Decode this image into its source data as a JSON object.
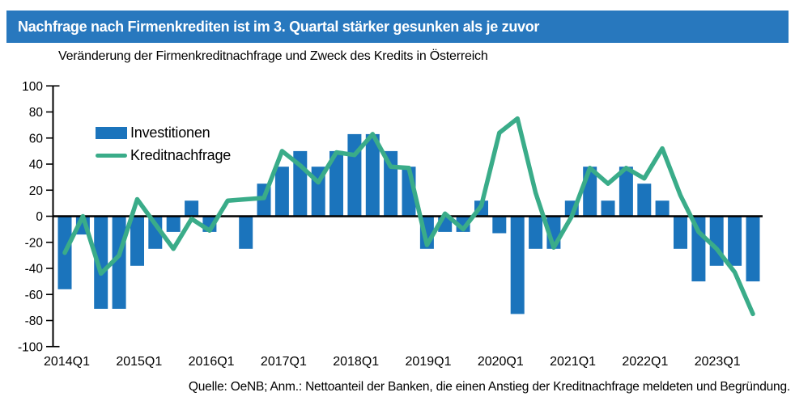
{
  "header": {
    "title": "Nachfrage nach Firmenkrediten ist im 3. Quartal stärker gesunken als je zuvor",
    "subtitle": "Veränderung der Firmenkreditnachfrage und Zweck des Kredits in Österreich"
  },
  "legend": {
    "bars_label": "Investitionen",
    "line_label": "Kreditnachfrage"
  },
  "footer": {
    "source_note": "Quelle: OeNB; Anm.: Nettoanteil der Banken, die einen Anstieg der Kreditnachfrage meldeten und Begründung."
  },
  "colors": {
    "banner_bg": "#2878BE",
    "bar": "#1B74BC",
    "line": "#3AAC89",
    "axis": "#000000",
    "text": "#000000",
    "title_text": "#FFFFFF"
  },
  "chart_data": {
    "type": "bar+line",
    "title": "Veränderung der Firmenkreditnachfrage und Zweck des Kredits in Österreich",
    "xlabel": "",
    "ylabel": "",
    "ylim": [
      -100,
      100
    ],
    "y_ticks": [
      100,
      80,
      60,
      40,
      20,
      0,
      -20,
      -40,
      -60,
      -80,
      -100
    ],
    "grid": false,
    "legend_position": "upper-left-inside",
    "x_tick_labels": [
      "2014Q1",
      "2015Q1",
      "2016Q1",
      "2017Q1",
      "2018Q1",
      "2019Q1",
      "2020Q1",
      "2021Q1",
      "2022Q1",
      "2023Q1"
    ],
    "categories": [
      "2014Q1",
      "2014Q2",
      "2014Q3",
      "2014Q4",
      "2015Q1",
      "2015Q2",
      "2015Q3",
      "2015Q4",
      "2016Q1",
      "2016Q2",
      "2016Q3",
      "2016Q4",
      "2017Q1",
      "2017Q2",
      "2017Q3",
      "2017Q4",
      "2018Q1",
      "2018Q2",
      "2018Q3",
      "2018Q4",
      "2019Q1",
      "2019Q2",
      "2019Q3",
      "2019Q4",
      "2020Q1",
      "2020Q2",
      "2020Q3",
      "2020Q4",
      "2021Q1",
      "2021Q2",
      "2021Q3",
      "2021Q4",
      "2022Q1",
      "2022Q2",
      "2022Q3",
      "2022Q4",
      "2023Q1",
      "2023Q2",
      "2023Q3"
    ],
    "series": [
      {
        "name": "Investitionen",
        "type": "bar",
        "values": [
          -56,
          -14,
          -71,
          -71,
          -38,
          -25,
          -12,
          12,
          -12,
          0,
          -25,
          25,
          38,
          50,
          38,
          50,
          63,
          63,
          50,
          38,
          -25,
          -12,
          -12,
          12,
          -13,
          -75,
          -25,
          -25,
          12,
          38,
          12,
          38,
          25,
          12,
          -25,
          -50,
          -38,
          -38,
          -50
        ]
      },
      {
        "name": "Kreditnachfrage",
        "type": "line",
        "values": [
          -28,
          0,
          -44,
          -30,
          13,
          -6,
          -25,
          -2,
          -11,
          12,
          13,
          14,
          50,
          39,
          26,
          49,
          47,
          63,
          38,
          37,
          -22,
          2,
          -10,
          8,
          64,
          75,
          18,
          -24,
          0,
          37,
          25,
          37,
          29,
          52,
          16,
          -12,
          -25,
          -43,
          -75
        ]
      }
    ]
  }
}
